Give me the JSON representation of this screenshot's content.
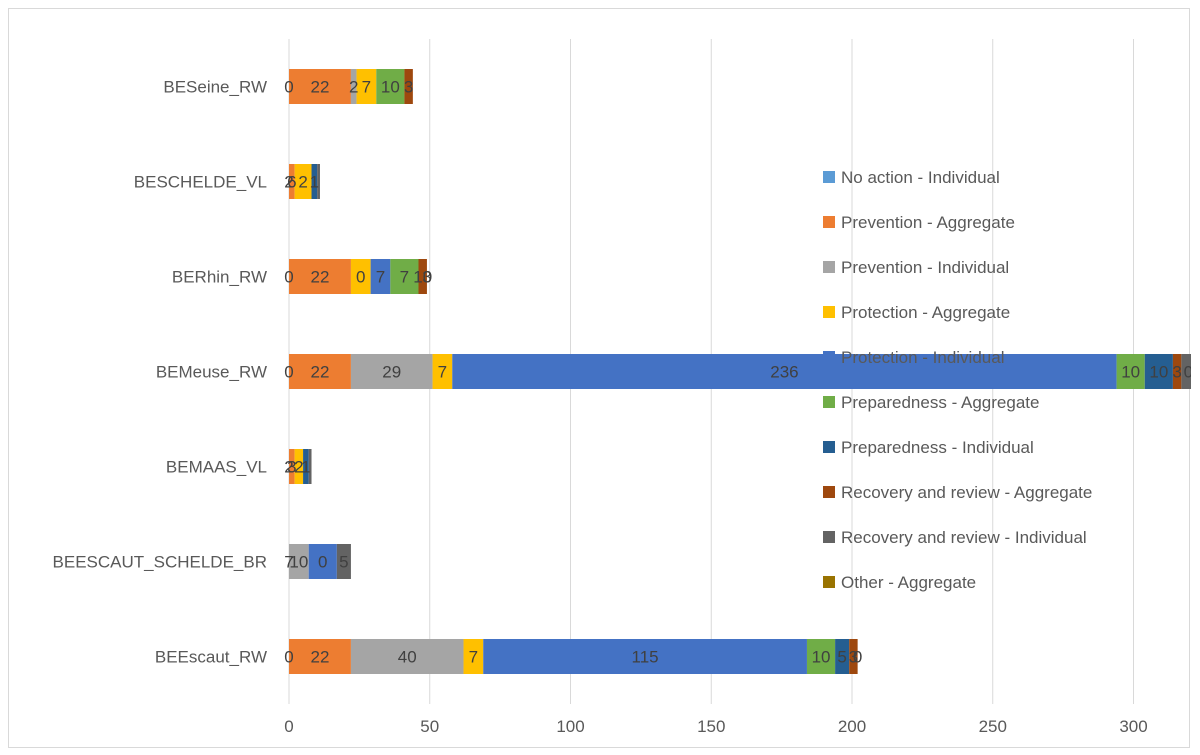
{
  "chart_data": {
    "type": "bar",
    "orientation": "horizontal",
    "stacked": true,
    "categories": [
      "BESeine_RW",
      "BESCHELDE_VL",
      "BERhin_RW",
      "BEMeuse_RW",
      "BEMAAS_VL",
      "BEESCAUT_SCHELDE_BR",
      "BEEscaut_RW"
    ],
    "series": [
      {
        "name": "No action - Individual",
        "color": "#5b9bd5",
        "values": [
          0,
          0,
          0,
          0,
          0,
          0,
          0
        ]
      },
      {
        "name": "Prevention - Aggregate",
        "color": "#ed7d31",
        "values": [
          22,
          2,
          22,
          22,
          2,
          0,
          22
        ]
      },
      {
        "name": "Prevention - Individual",
        "color": "#a5a5a5",
        "values": [
          2,
          0,
          0,
          29,
          0,
          7,
          40
        ]
      },
      {
        "name": "Protection - Aggregate",
        "color": "#ffc000",
        "values": [
          7,
          6,
          7,
          7,
          3,
          0,
          7
        ]
      },
      {
        "name": "Protection - Individual",
        "color": "#4472c4",
        "values": [
          0,
          0,
          7,
          236,
          0,
          10,
          115
        ]
      },
      {
        "name": "Preparedness - Aggregate",
        "color": "#70ad47",
        "values": [
          10,
          0,
          10,
          10,
          0,
          0,
          10
        ]
      },
      {
        "name": "Preparedness - Individual",
        "color": "#255e91",
        "values": [
          0,
          2,
          0,
          10,
          2,
          0,
          5
        ]
      },
      {
        "name": "Recovery and review - Aggregate",
        "color": "#9e480e",
        "values": [
          3,
          0,
          3,
          3,
          0,
          0,
          3
        ]
      },
      {
        "name": "Recovery and review - Individual",
        "color": "#636363",
        "values": [
          0,
          1,
          0,
          5,
          1,
          5,
          0
        ]
      },
      {
        "name": "Other - Aggregate",
        "color": "#997300",
        "values": [
          0,
          0,
          0,
          0,
          0,
          0,
          0
        ]
      }
    ],
    "data_labels": [
      "0 22 2 7 10 3",
      "2 6 2 1",
      "0 22 0 7 7 10 3",
      "0 22 29 7 236 10 10 3 0",
      "2 3 2 1",
      "7 10 0 5",
      "0 22 40 7 115 10 5 3 0"
    ],
    "visible_labels": [
      [
        "0",
        "22",
        "2",
        "7",
        "10",
        "3"
      ],
      [
        "2",
        "6",
        "2",
        "1"
      ],
      [
        "0",
        "22",
        "0",
        "7",
        "7",
        "10",
        "3"
      ],
      [
        "0",
        "22",
        "29",
        "7",
        "236",
        "10",
        "10",
        "3",
        "0"
      ],
      [
        "2",
        "3",
        "2",
        "1"
      ],
      [
        "7",
        "10",
        "0",
        "5"
      ],
      [
        "0",
        "22",
        "40",
        "7",
        "115",
        "10",
        "5",
        "3",
        "0"
      ]
    ],
    "xticks": [
      "0",
      "50",
      "100",
      "150",
      "200",
      "250",
      "300",
      "350"
    ],
    "xlim": [
      0,
      350
    ],
    "title": "",
    "xlabel": "",
    "ylabel": "",
    "grid": "vertical",
    "legend_position": "right"
  }
}
